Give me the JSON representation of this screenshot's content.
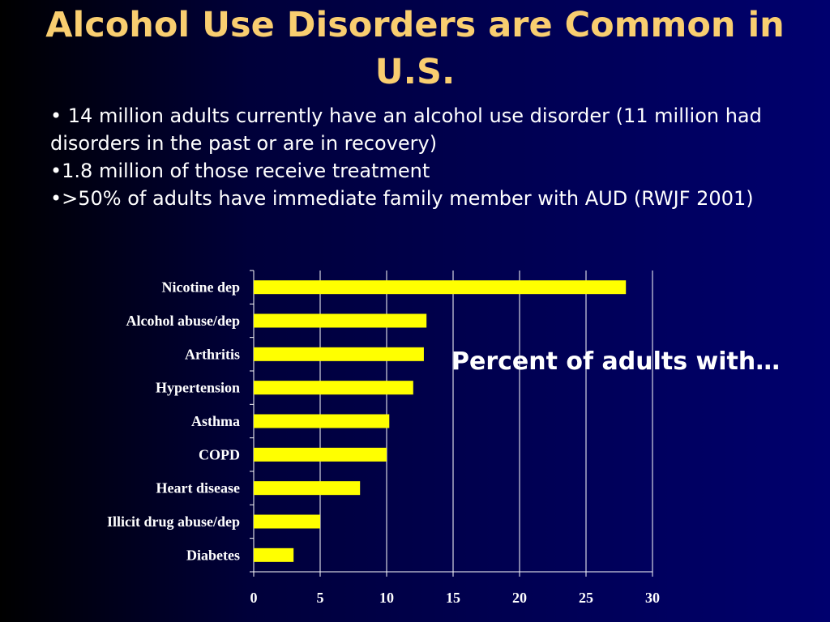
{
  "slide": {
    "title": "Alcohol Use Disorders are Common in U.S.",
    "bullets": [
      "• 14 million adults currently have an alcohol use disorder (11 million had disorders in the past or are in recovery)",
      "•1.8 million of those receive treatment",
      "•>50% of adults have immediate family member with AUD (RWJF 2001)"
    ],
    "annotation": "Percent of adults with…"
  },
  "colors": {
    "title": "#f9ce70",
    "bar": "#ffff00",
    "text": "#ffffff",
    "grid": "#ffffff"
  },
  "chart_data": {
    "type": "bar",
    "orientation": "horizontal",
    "categories": [
      "Nicotine dep",
      "Alcohol abuse/dep",
      "Arthritis",
      "Hypertension",
      "Asthma",
      "COPD",
      "Heart disease",
      "Illicit drug abuse/dep",
      "Diabetes"
    ],
    "values": [
      28,
      13,
      12.8,
      12,
      10.2,
      10,
      8,
      5,
      3
    ],
    "xlim": [
      0,
      30
    ],
    "xticks": [
      0,
      5,
      10,
      15,
      20,
      25,
      30
    ],
    "grid": "vertical",
    "legend": "none",
    "title": "",
    "xlabel": "",
    "ylabel": ""
  }
}
